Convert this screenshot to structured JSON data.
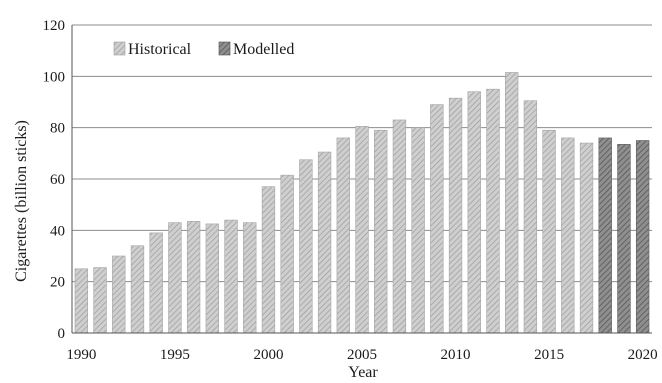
{
  "chart_data": {
    "type": "bar",
    "title": "",
    "xlabel": "Year",
    "ylabel": "Cigarettes (billion sticks)",
    "ylim": [
      0,
      120
    ],
    "yticks": [
      0,
      20,
      40,
      60,
      80,
      100,
      120
    ],
    "xticks": [
      1990,
      1995,
      2000,
      2005,
      2010,
      2015,
      2020
    ],
    "grid": true,
    "legend_position": "top-left",
    "series": [
      {
        "name": "Historical",
        "color": "#c8c8c8",
        "x": [
          1990,
          1991,
          1992,
          1993,
          1994,
          1995,
          1996,
          1997,
          1998,
          1999,
          2000,
          2001,
          2002,
          2003,
          2004,
          2005,
          2006,
          2007,
          2008,
          2009,
          2010,
          2011,
          2012,
          2013,
          2014,
          2015,
          2016,
          2017
        ],
        "values": [
          25,
          25.5,
          30,
          34,
          39,
          43,
          43.5,
          42.5,
          44,
          43,
          57,
          61.5,
          67.5,
          70.5,
          76,
          80.5,
          79,
          83,
          80,
          89,
          91.5,
          94,
          95,
          101.5,
          90.5,
          79,
          76,
          74
        ]
      },
      {
        "name": "Modelled",
        "color": "#8a8a8a",
        "x": [
          2018,
          2019,
          2020
        ],
        "values": [
          76,
          73.5,
          75
        ]
      }
    ]
  }
}
